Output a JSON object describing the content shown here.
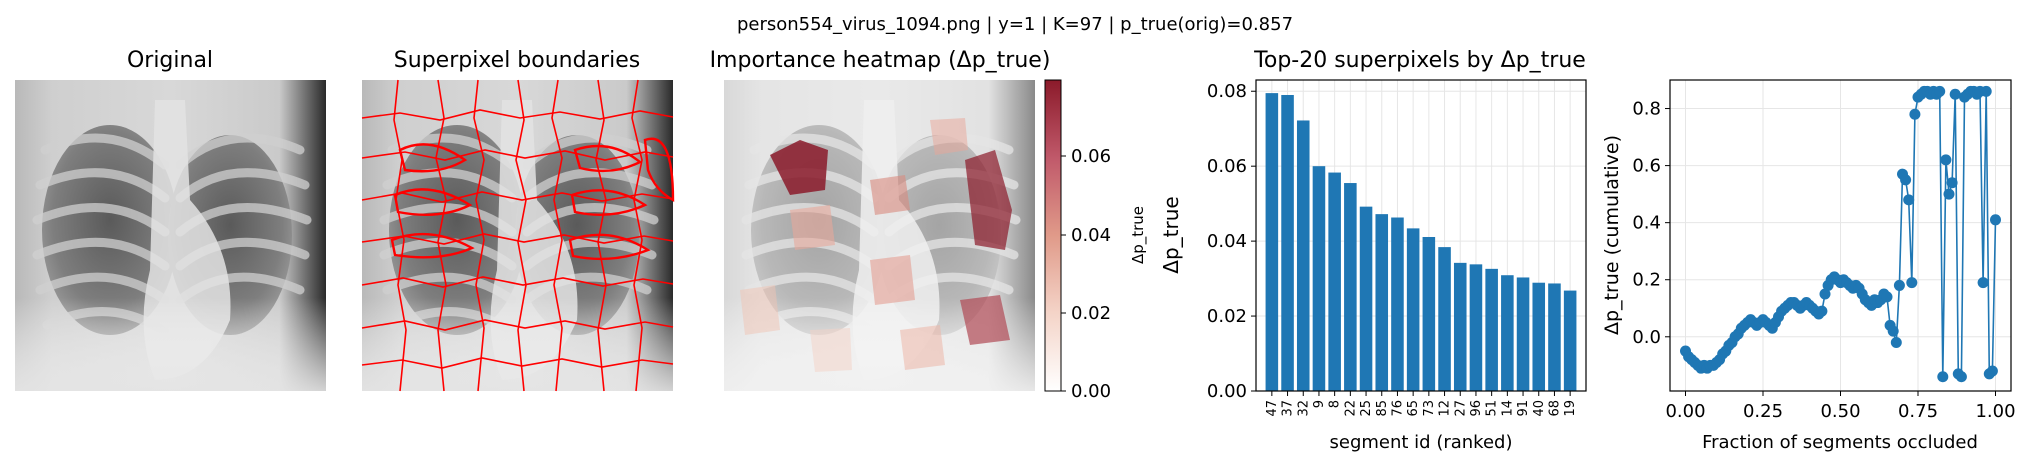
{
  "suptitle": "person554_virus_1094.png | y=1 | K=97 | p_true(orig)=0.857",
  "panels": {
    "original": {
      "title": "Original"
    },
    "boundaries": {
      "title": "Superpixel boundaries"
    },
    "heatmap": {
      "title": "Importance heatmap (Δp_true)",
      "colorbar": {
        "label": "Δp_true",
        "ticks": [
          "0.00",
          "0.02",
          "0.04",
          "0.06"
        ]
      }
    }
  },
  "colors": {
    "bar": "#1f77b4",
    "line": "#1f77b4",
    "boundary": "#ff0000",
    "heat_high": "#8b1a2a"
  },
  "chart_data": [
    {
      "type": "bar",
      "title": "Top-20 superpixels by Δp_true",
      "xlabel": "segment id (ranked)",
      "ylabel": "Δp_true",
      "ylim": [
        0,
        0.083
      ],
      "yticks": [
        "0.00",
        "0.02",
        "0.04",
        "0.06",
        "0.08"
      ],
      "grid": true,
      "categories": [
        "47",
        "37",
        "32",
        "9",
        "8",
        "22",
        "25",
        "85",
        "76",
        "65",
        "73",
        "12",
        "27",
        "96",
        "51",
        "14",
        "91",
        "40",
        "68",
        "19"
      ],
      "values": [
        0.0795,
        0.079,
        0.0722,
        0.06,
        0.0583,
        0.0555,
        0.0492,
        0.0472,
        0.0463,
        0.0434,
        0.0411,
        0.0384,
        0.0342,
        0.0338,
        0.0326,
        0.0309,
        0.0303,
        0.0289,
        0.0287,
        0.0268
      ]
    },
    {
      "type": "line",
      "title": "",
      "xlabel": "Fraction of segments occluded",
      "ylabel": "Δp_true (cumulative)",
      "xlim": [
        -0.05,
        1.05
      ],
      "ylim": [
        -0.19,
        0.9
      ],
      "xticks": [
        "0.00",
        "0.25",
        "0.50",
        "0.75",
        "1.00"
      ],
      "yticks": [
        "0.0",
        "0.2",
        "0.4",
        "0.6",
        "0.8"
      ],
      "grid": true,
      "markers": true,
      "x": [
        0.0,
        0.01,
        0.02,
        0.03,
        0.04,
        0.05,
        0.06,
        0.07,
        0.08,
        0.09,
        0.1,
        0.11,
        0.12,
        0.13,
        0.14,
        0.15,
        0.16,
        0.17,
        0.18,
        0.19,
        0.2,
        0.21,
        0.22,
        0.23,
        0.24,
        0.25,
        0.26,
        0.27,
        0.28,
        0.29,
        0.3,
        0.31,
        0.32,
        0.33,
        0.34,
        0.35,
        0.36,
        0.37,
        0.38,
        0.39,
        0.4,
        0.41,
        0.42,
        0.43,
        0.44,
        0.45,
        0.46,
        0.47,
        0.48,
        0.49,
        0.5,
        0.51,
        0.52,
        0.53,
        0.54,
        0.55,
        0.56,
        0.57,
        0.58,
        0.59,
        0.6,
        0.61,
        0.62,
        0.63,
        0.64,
        0.65,
        0.66,
        0.67,
        0.68,
        0.69,
        0.7,
        0.71,
        0.72,
        0.73,
        0.74,
        0.75,
        0.76,
        0.77,
        0.78,
        0.79,
        0.8,
        0.81,
        0.82,
        0.83,
        0.84,
        0.85,
        0.86,
        0.87,
        0.88,
        0.89,
        0.9,
        0.91,
        0.92,
        0.93,
        0.94,
        0.95,
        0.96,
        0.97,
        0.98,
        0.99,
        1.0
      ],
      "y": [
        -0.05,
        -0.07,
        -0.08,
        -0.09,
        -0.1,
        -0.11,
        -0.1,
        -0.11,
        -0.1,
        -0.1,
        -0.09,
        -0.08,
        -0.06,
        -0.05,
        -0.03,
        -0.02,
        0.0,
        0.01,
        0.03,
        0.04,
        0.05,
        0.06,
        0.05,
        0.04,
        0.05,
        0.06,
        0.05,
        0.04,
        0.03,
        0.05,
        0.07,
        0.09,
        0.1,
        0.11,
        0.12,
        0.12,
        0.11,
        0.1,
        0.11,
        0.12,
        0.11,
        0.1,
        0.09,
        0.08,
        0.09,
        0.15,
        0.18,
        0.2,
        0.21,
        0.2,
        0.19,
        0.2,
        0.19,
        0.18,
        0.17,
        0.18,
        0.17,
        0.15,
        0.13,
        0.12,
        0.11,
        0.13,
        0.12,
        0.13,
        0.15,
        0.14,
        0.04,
        0.02,
        -0.02,
        0.18,
        0.57,
        0.55,
        0.48,
        0.19,
        0.78,
        0.84,
        0.85,
        0.86,
        0.86,
        0.85,
        0.86,
        0.85,
        0.86,
        -0.14,
        0.62,
        0.5,
        0.54,
        0.85,
        -0.13,
        -0.14,
        0.84,
        0.85,
        0.86,
        0.86,
        0.85,
        0.86,
        0.19,
        0.86,
        -0.13,
        -0.12,
        0.41
      ]
    }
  ]
}
